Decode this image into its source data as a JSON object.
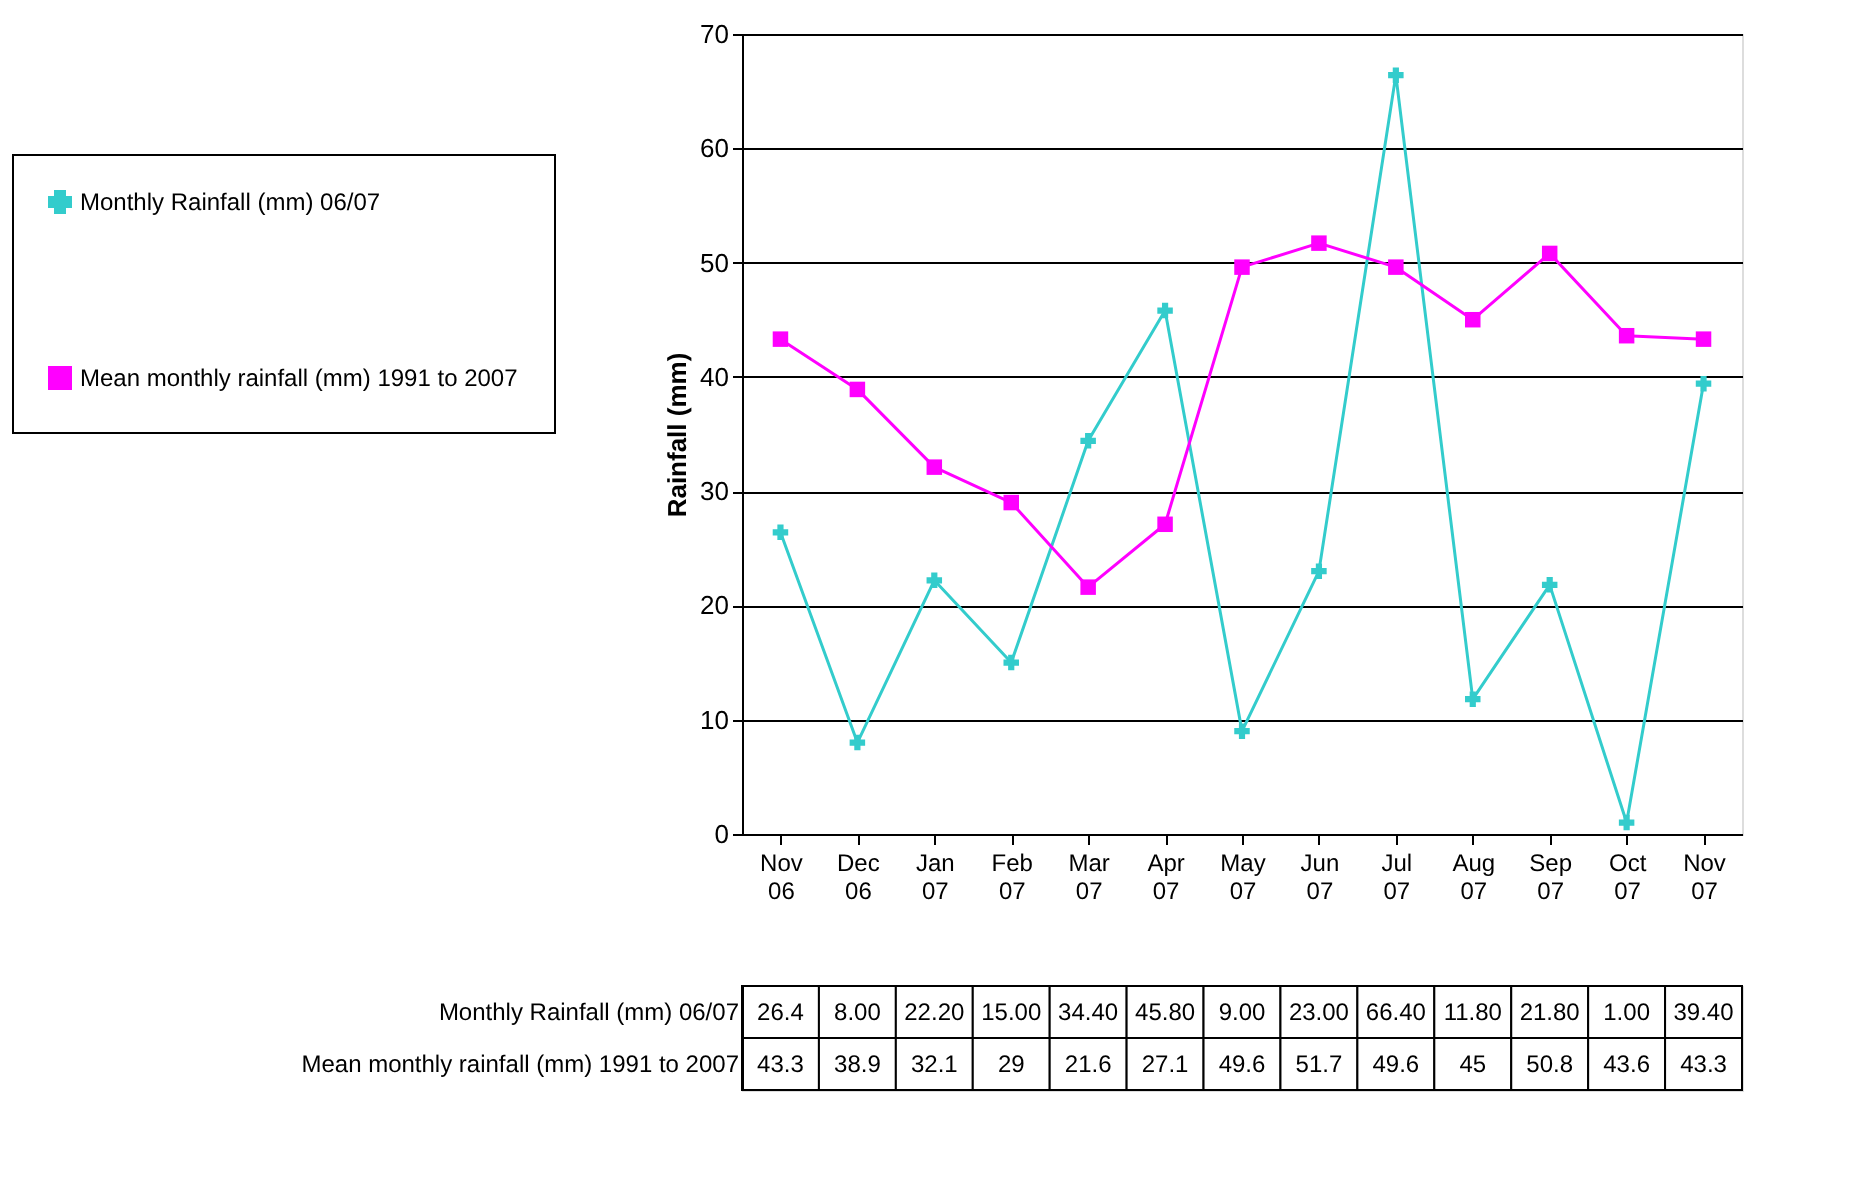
{
  "chart_data": {
    "type": "line",
    "ylabel": "Rainfall (mm)",
    "categories": [
      "Nov 06",
      "Dec 06",
      "Jan 07",
      "Feb 07",
      "Mar 07",
      "Apr 07",
      "May 07",
      "Jun 07",
      "Jul 07",
      "Aug 07",
      "Sep 07",
      "Oct 07",
      "Nov 07"
    ],
    "series": [
      {
        "name": "Monthly Rainfall (mm) 06/07",
        "color": "#33cccc",
        "marker": "cross",
        "values": [
          26.4,
          8.0,
          22.2,
          15.0,
          34.4,
          45.8,
          9.0,
          23.0,
          66.4,
          11.8,
          21.8,
          1.0,
          39.4
        ],
        "value_labels": [
          "26.4",
          "8.00",
          "22.20",
          "15.00",
          "34.40",
          "45.80",
          "9.00",
          "23.00",
          "66.40",
          "11.80",
          "21.80",
          "1.00",
          "39.40"
        ]
      },
      {
        "name": "Mean monthly rainfall (mm) 1991 to 2007",
        "color": "#ff00ff",
        "marker": "square",
        "values": [
          43.3,
          38.9,
          32.1,
          29,
          21.6,
          27.1,
          49.6,
          51.7,
          49.6,
          45,
          50.8,
          43.6,
          43.3
        ],
        "value_labels": [
          "43.3",
          "38.9",
          "32.1",
          "29",
          "21.6",
          "27.1",
          "49.6",
          "51.7",
          "49.6",
          "45",
          "50.8",
          "43.6",
          "43.3"
        ]
      }
    ],
    "ylim": [
      0,
      70
    ],
    "yticks": [
      0,
      10,
      20,
      30,
      40,
      50,
      60,
      70
    ],
    "grid": "y",
    "legend": "left",
    "line_style": "solid"
  }
}
